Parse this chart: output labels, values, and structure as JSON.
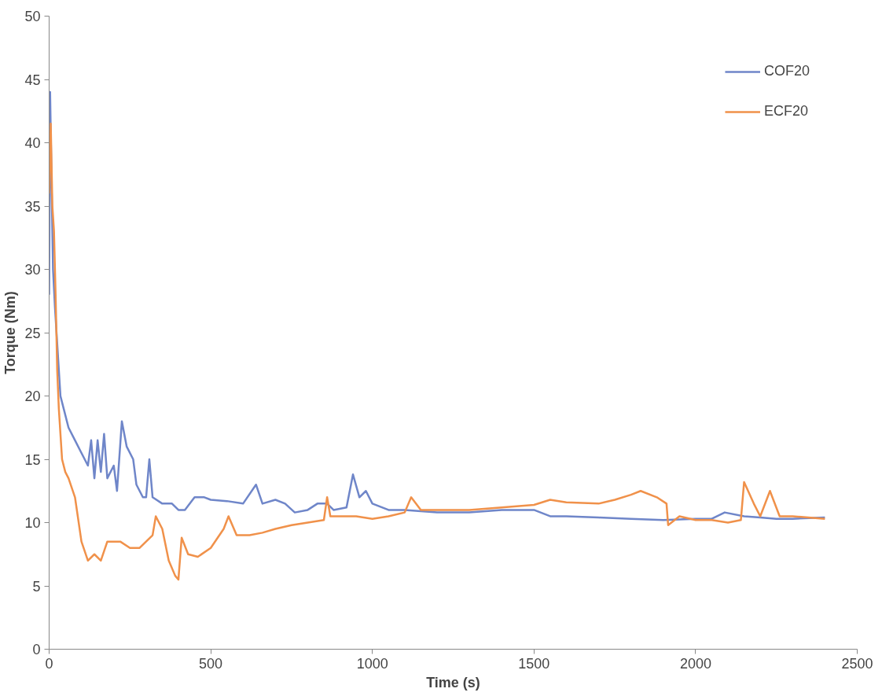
{
  "chart_data": {
    "type": "line",
    "xlabel": "Time (s)",
    "ylabel": "Torque (Nm)",
    "xlim": [
      0,
      2500
    ],
    "ylim": [
      0,
      50
    ],
    "xticks": [
      0,
      500,
      1000,
      1500,
      2000,
      2500
    ],
    "yticks": [
      0,
      5,
      10,
      15,
      20,
      25,
      30,
      35,
      40,
      45,
      50
    ],
    "grid": false,
    "legend": "top right",
    "marker": "none",
    "line_style": "solid",
    "series": [
      {
        "name": "COF20",
        "color": "#6f86c9",
        "x": [
          0,
          3,
          8,
          12,
          18,
          35,
          45,
          60,
          80,
          100,
          120,
          130,
          140,
          150,
          160,
          170,
          180,
          200,
          210,
          225,
          240,
          260,
          270,
          290,
          300,
          310,
          320,
          350,
          380,
          400,
          420,
          450,
          480,
          500,
          550,
          600,
          640,
          660,
          700,
          730,
          760,
          800,
          830,
          860,
          880,
          920,
          940,
          960,
          980,
          1000,
          1050,
          1100,
          1200,
          1300,
          1400,
          1500,
          1550,
          1600,
          1700,
          1800,
          1900,
          2000,
          2050,
          2090,
          2150,
          2200,
          2250,
          2300,
          2400
        ],
        "values": [
          28,
          44,
          36,
          30,
          27,
          20,
          19,
          17.5,
          16.5,
          15.5,
          14.5,
          16.5,
          13.5,
          16.5,
          14,
          17,
          13.5,
          14.5,
          12.5,
          18,
          16,
          15,
          13,
          12,
          12,
          15,
          12,
          11.5,
          11.5,
          11,
          11,
          12,
          12,
          11.8,
          11.7,
          11.5,
          13,
          11.5,
          11.8,
          11.5,
          10.8,
          11,
          11.5,
          11.5,
          11,
          11.2,
          13.8,
          12,
          12.5,
          11.5,
          11,
          11,
          10.8,
          10.8,
          11,
          11,
          10.5,
          10.5,
          10.4,
          10.3,
          10.2,
          10.3,
          10.3,
          10.8,
          10.5,
          10.4,
          10.3,
          10.3,
          10.4
        ]
      },
      {
        "name": "ECF20",
        "color": "#f0914a",
        "x": [
          0,
          5,
          10,
          15,
          20,
          25,
          30,
          40,
          50,
          60,
          80,
          100,
          120,
          140,
          160,
          180,
          200,
          220,
          250,
          280,
          320,
          330,
          350,
          370,
          390,
          400,
          410,
          430,
          460,
          500,
          540,
          555,
          580,
          620,
          660,
          700,
          750,
          800,
          850,
          860,
          870,
          900,
          950,
          1000,
          1050,
          1100,
          1120,
          1150,
          1200,
          1300,
          1400,
          1500,
          1550,
          1600,
          1700,
          1750,
          1800,
          1830,
          1880,
          1910,
          1915,
          1950,
          2000,
          2050,
          2100,
          2140,
          2150,
          2180,
          2200,
          2230,
          2260,
          2300,
          2400
        ],
        "values": [
          36,
          41.5,
          35,
          33,
          28,
          22,
          19,
          15,
          14,
          13.5,
          12,
          8.5,
          7,
          7.5,
          7,
          8.5,
          8.5,
          8.5,
          8,
          8,
          9,
          10.5,
          9.5,
          7,
          5.8,
          5.5,
          8.8,
          7.5,
          7.3,
          8,
          9.5,
          10.5,
          9,
          9,
          9.2,
          9.5,
          9.8,
          10,
          10.2,
          12,
          10.5,
          10.5,
          10.5,
          10.3,
          10.5,
          10.8,
          12,
          11,
          11,
          11,
          11.2,
          11.4,
          11.8,
          11.6,
          11.5,
          11.8,
          12.2,
          12.5,
          12,
          11.5,
          9.8,
          10.5,
          10.2,
          10.2,
          10,
          10.2,
          13.2,
          11.5,
          10.5,
          12.5,
          10.5,
          10.5,
          10.3
        ]
      }
    ]
  }
}
